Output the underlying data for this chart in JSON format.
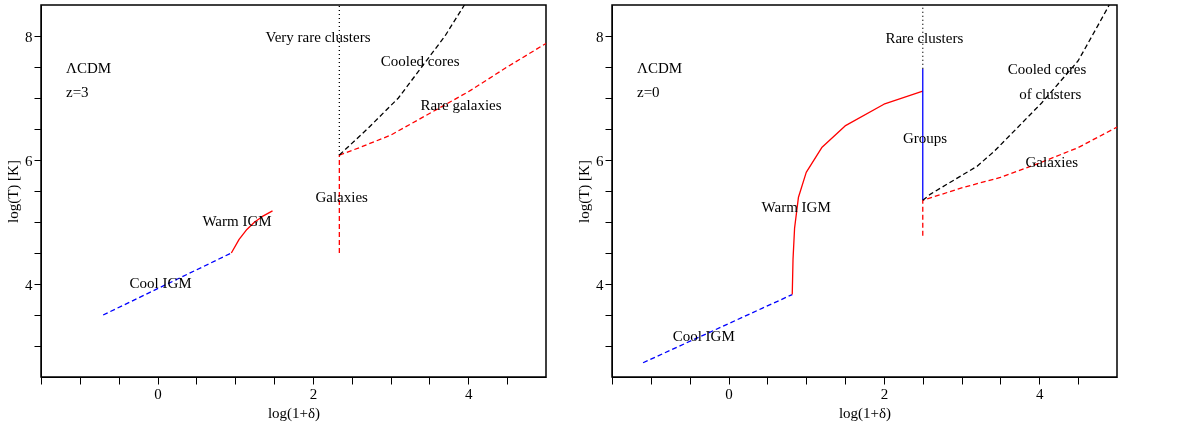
{
  "chart_data": [
    {
      "type": "line",
      "xlabel": "log(1+δ)",
      "ylabel": "log(T) [K]",
      "xlim": [
        -1.5,
        5
      ],
      "ylim": [
        2.5,
        8.5
      ],
      "xticks": [
        {
          "value": -1.5,
          "label": null
        },
        {
          "value": -1,
          "label": null
        },
        {
          "value": -0.5,
          "label": null
        },
        0,
        {
          "value": 0.5,
          "label": null
        },
        {
          "value": 1,
          "label": null
        },
        {
          "value": 1.5,
          "label": null
        },
        2,
        {
          "value": 2.5,
          "label": null
        },
        {
          "value": 3,
          "label": null
        },
        {
          "value": 3.5,
          "label": null
        },
        4,
        {
          "value": 4.5,
          "label": null
        }
      ],
      "yticks": [
        {
          "value": 3,
          "label": null
        },
        {
          "value": 3.5,
          "label": null
        },
        4,
        {
          "value": 4.5,
          "label": null
        },
        {
          "value": 5,
          "label": null
        },
        {
          "value": 5.5,
          "label": null
        },
        6,
        {
          "value": 6.5,
          "label": null
        },
        {
          "value": 7,
          "label": null
        },
        {
          "value": 7.5,
          "label": null
        },
        8
      ],
      "grid": false,
      "series": [
        {
          "color": "#0000ff",
          "line_style": "dashed",
          "x": [
            -0.7,
            0.95
          ],
          "values": [
            3.5,
            4.5
          ]
        },
        {
          "color": "#ff0000",
          "line_style": "solid",
          "x": [
            0.95,
            1.05,
            1.15,
            1.25,
            1.35,
            1.48
          ],
          "values": [
            4.5,
            4.72,
            4.88,
            5.0,
            5.09,
            5.18
          ]
        },
        {
          "color": "#ff0000",
          "line_style": "dashed",
          "x": [
            2.34,
            2.34
          ],
          "values": [
            4.5,
            6.08
          ]
        },
        {
          "color": "#ff0000",
          "line_style": "dashed",
          "x": [
            2.34,
            2.6,
            3.0,
            3.5,
            4.0,
            4.5,
            5.0
          ],
          "values": [
            6.08,
            6.2,
            6.4,
            6.75,
            7.1,
            7.5,
            7.88
          ]
        },
        {
          "color": "#000000",
          "line_style": "dashed",
          "x": [
            2.34,
            2.7,
            3.1,
            3.4,
            3.7,
            3.95
          ],
          "values": [
            6.08,
            6.5,
            7.0,
            7.5,
            8.0,
            8.5
          ]
        },
        {
          "color": "#000000",
          "line_style": "dotted",
          "x": [
            2.34,
            2.34
          ],
          "values": [
            6.08,
            8.5
          ]
        }
      ],
      "annotations": [
        "ΛCDM",
        "z=3",
        "Very rare clusters",
        "Rare galaxies",
        "Warm IGM",
        {
          "text": "Cooled cores",
          "x": 3.38,
          "y": 7.59
        },
        {
          "text": "Galaxies",
          "x": 2.37,
          "y": 5.41
        },
        {
          "text": "Cool IGM",
          "x": 0.04,
          "y": 4.02
        }
      ]
    },
    {
      "type": "line",
      "xlabel": "log(1+δ)",
      "ylabel": "log(T) [K]",
      "xlim": [
        -1.5,
        5
      ],
      "ylim": [
        2.5,
        8.5
      ],
      "xticks": [
        {
          "value": -1.5,
          "label": null
        },
        {
          "value": -1,
          "label": null
        },
        {
          "value": -0.5,
          "label": null
        },
        0,
        {
          "value": 0.5,
          "label": null
        },
        {
          "value": 1,
          "label": null
        },
        {
          "value": 1.5,
          "label": null
        },
        2,
        {
          "value": 2.5,
          "label": null
        },
        {
          "value": 3,
          "label": null
        },
        {
          "value": 3.5,
          "label": null
        },
        4,
        {
          "value": 4.5,
          "label": null
        }
      ],
      "yticks": [
        {
          "value": 3,
          "label": null
        },
        {
          "value": 3.5,
          "label": null
        },
        4,
        {
          "value": 4.5,
          "label": null
        },
        {
          "value": 5,
          "label": null
        },
        {
          "value": 5.5,
          "label": null
        },
        6,
        {
          "value": 6.5,
          "label": null
        },
        {
          "value": 7,
          "label": null
        },
        {
          "value": 7.5,
          "label": null
        },
        8
      ],
      "grid": false,
      "series": [
        {
          "color": "#0000ff",
          "line_style": "dashed",
          "x": [
            -1.1,
            0.82
          ],
          "values": [
            2.73,
            3.83
          ]
        },
        {
          "color": "#ff0000",
          "line_style": "solid",
          "x": [
            0.82,
            0.83,
            0.85,
            0.9,
            1.0,
            1.2,
            1.5,
            2.0,
            2.5
          ],
          "values": [
            3.83,
            4.4,
            4.9,
            5.4,
            5.8,
            6.2,
            6.55,
            6.9,
            7.11
          ]
        },
        {
          "color": "#0000ff",
          "line_style": "solid",
          "x": [
            2.5,
            2.5
          ],
          "values": [
            5.35,
            7.47
          ]
        },
        {
          "color": "#ff0000",
          "line_style": "dashed",
          "x": [
            2.5,
            2.5,
            3.0,
            3.5,
            4.0,
            4.5,
            5.0
          ],
          "values": [
            4.78,
            5.35,
            5.55,
            5.72,
            5.95,
            6.2,
            6.53
          ]
        },
        {
          "color": "#000000",
          "line_style": "dashed",
          "x": [
            2.5,
            2.6,
            3.2,
            3.42,
            4.03,
            4.5,
            4.75,
            4.9
          ],
          "values": [
            5.35,
            5.45,
            5.9,
            6.14,
            6.92,
            7.6,
            8.16,
            8.5
          ]
        },
        {
          "color": "#000000",
          "line_style": "dotted",
          "x": [
            2.5,
            2.5
          ],
          "values": [
            7.47,
            8.5
          ]
        }
      ],
      "annotations": [
        "ΛCDM",
        "z=0",
        "Cooled cores",
        {
          "text": "Rare clusters",
          "x": 2.52,
          "y": 7.97
        },
        {
          "text": "of clusters",
          "x": 4.14,
          "y": 7.06
        },
        {
          "text": "Groups",
          "x": 2.53,
          "y": 6.35
        },
        {
          "text": "Galaxies",
          "x": 4.16,
          "y": 5.97
        },
        {
          "text": "Warm IGM",
          "x": 0.87,
          "y": 5.25
        },
        {
          "text": "Cool IGM",
          "x": -0.32,
          "y": 3.16
        }
      ]
    }
  ]
}
